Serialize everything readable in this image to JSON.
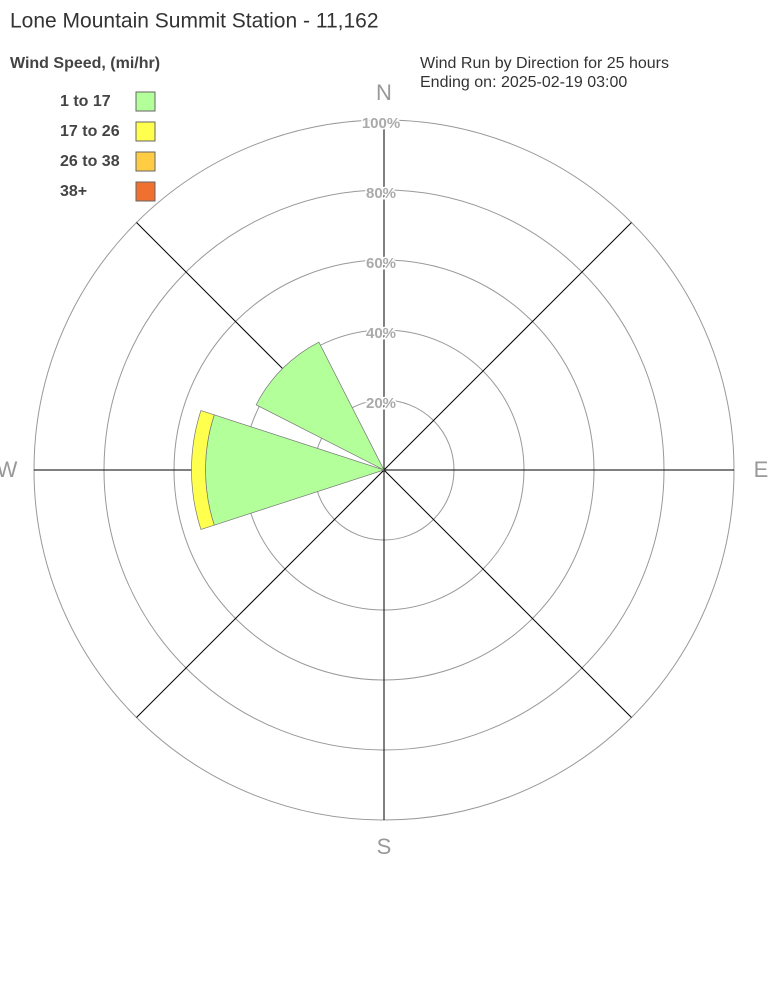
{
  "chart_data": {
    "type": "windrose",
    "title": "Lone Mountain Summit Station - 11,162",
    "legend_title": "Wind Speed, (mi/hr)",
    "subtitle": [
      "Wind Run by Direction for 25 hours",
      "Ending on: 2025-02-19 03:00"
    ],
    "compass": [
      "N",
      "E",
      "S",
      "W"
    ],
    "x": [
      270,
      315
    ],
    "series": [
      {
        "name": "1 to 17",
        "color": "#b3ff99",
        "values": [
          51,
          41
        ]
      },
      {
        "name": "17 to 26",
        "color": "#ffff4d",
        "values": [
          4,
          0
        ]
      },
      {
        "name": "26 to 38",
        "color": "#ffcc44",
        "values": [
          0,
          0
        ]
      },
      {
        "name": "38+",
        "color": "#f07030",
        "values": [
          0,
          0
        ]
      }
    ],
    "rlim": [
      0,
      100
    ],
    "rticks": [
      {
        "value": 20,
        "label": "20%"
      },
      {
        "value": 40,
        "label": "40%"
      },
      {
        "value": 60,
        "label": "60%"
      },
      {
        "value": 80,
        "label": "80%"
      },
      {
        "value": 100,
        "label": "100%"
      }
    ]
  }
}
